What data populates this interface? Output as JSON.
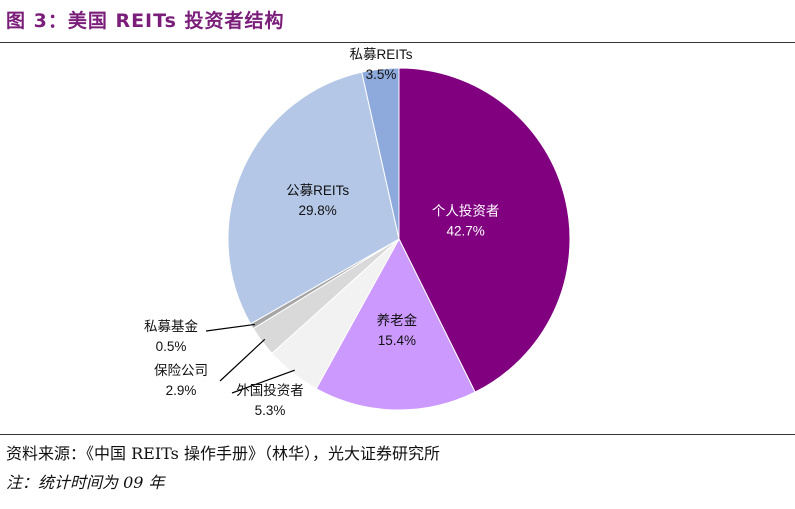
{
  "title": "图 3：美国 REITs 投资者结构",
  "source": "资料来源：《中国 REITs 操作手册》（林华），光大证券研究所",
  "note": "注：统计时间为 09 年",
  "chart_data": {
    "type": "pie",
    "start_angle": "12 o'clock",
    "direction": "clockwise",
    "slices": [
      {
        "name": "个人投资者",
        "value": 42.7,
        "label": "42.7%",
        "color": "#800080"
      },
      {
        "name": "养老金",
        "value": 15.4,
        "label": "15.4%",
        "color": "#cc99ff"
      },
      {
        "name": "外国投资者",
        "value": 5.3,
        "label": "5.3%",
        "color": "#f2f2f2"
      },
      {
        "name": "保险公司",
        "value": 2.9,
        "label": "2.9%",
        "color": "#d9d9d9"
      },
      {
        "name": "私募基金",
        "value": 0.5,
        "label": "0.5%",
        "color": "#a6a6a6"
      },
      {
        "name": "公募REITs",
        "value": 29.8,
        "label": "29.8%",
        "color": "#b4c7e7"
      },
      {
        "name": "私募REITs",
        "value": 3.5,
        "label": "3.5%",
        "color": "#8ea9db"
      }
    ]
  }
}
